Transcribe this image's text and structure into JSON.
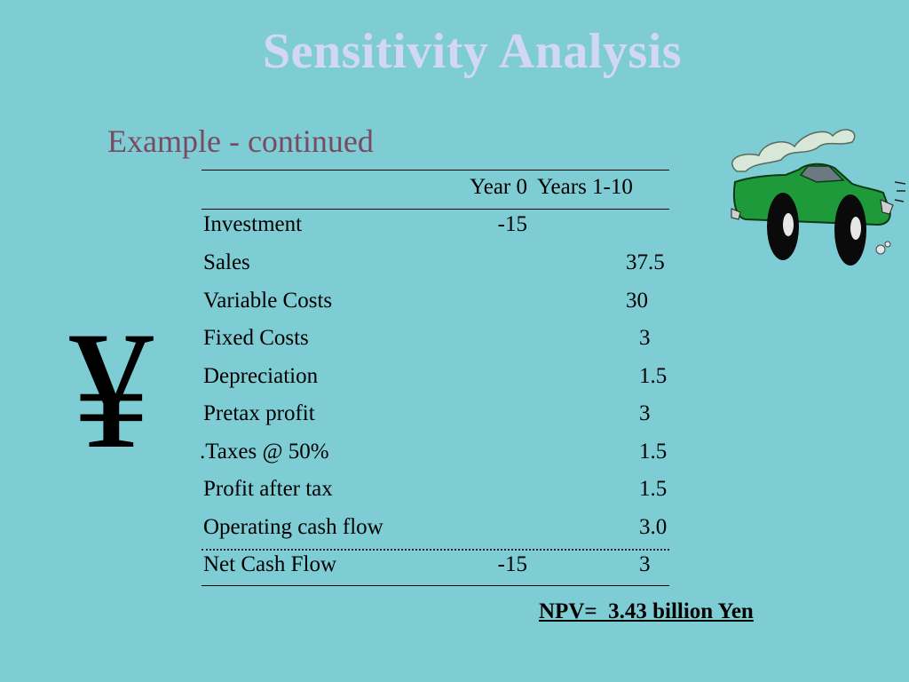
{
  "title": "Sensitivity Analysis",
  "subtitle": "Example - continued",
  "yen_symbol": "¥",
  "table": {
    "headers": {
      "year0": "Year 0",
      "years1_10": "Years 1-10"
    },
    "rows": [
      {
        "label": "Investment",
        "year0": "-15",
        "years": ""
      },
      {
        "label": "Sales",
        "year0": "",
        "years": "37.5"
      },
      {
        "label": "Variable Costs",
        "year0": "",
        "years": "30"
      },
      {
        "label": "Fixed Costs",
        "year0": "",
        "years": "3"
      },
      {
        "label": "Depreciation",
        "year0": "",
        "years": "1.5"
      },
      {
        "label": "Pretax profit",
        "year0": "",
        "years": "3"
      },
      {
        "label": ".Taxes @ 50%",
        "year0": "",
        "years": "1.5"
      },
      {
        "label": "Profit after tax",
        "year0": "",
        "years": "1.5"
      },
      {
        "label": "Operating cash flow",
        "year0": "",
        "years": "3.0"
      },
      {
        "label": "Net Cash Flow",
        "year0": "-15",
        "years": "3"
      }
    ]
  },
  "npv": "NPV=  3.43 billion Yen",
  "colors": {
    "background": "#7fcdd4",
    "title": "#d3d7f7",
    "subtitle": "#7a4a60",
    "car_body": "#1e9a3a"
  }
}
